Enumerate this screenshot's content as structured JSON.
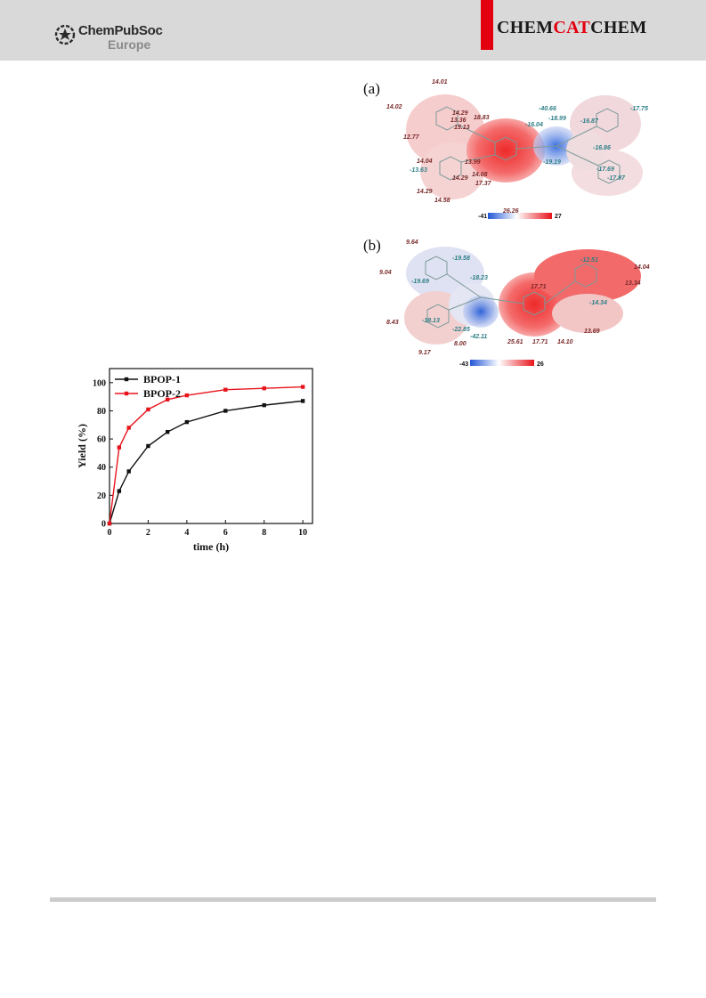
{
  "header": {
    "publisher_name": "ChemPubSoc",
    "publisher_sub": "Europe",
    "journal_part1": "CHEM",
    "journal_part2": "CAT",
    "journal_part3": "CHEM",
    "accent_color": "#e3000f",
    "header_bg": "#d9d9d9"
  },
  "figure_a": {
    "panel_label": "(a)",
    "scale_min": "-41",
    "scale_max": "27",
    "positive_labels": [
      "14.01",
      "14.02",
      "12.77",
      "14.04",
      "14.29",
      "14.58",
      "14.29",
      "14.29",
      "13.36",
      "15.13",
      "18.83",
      "13.99",
      "14.08",
      "17.37",
      "26.26"
    ],
    "negative_labels": [
      "-13.63",
      "-16.04",
      "-40.66",
      "-18.99",
      "-19.19",
      "-16.87",
      "-16.86",
      "-17.75",
      "-17.69",
      "-17.97"
    ]
  },
  "figure_b": {
    "panel_label": "(b)",
    "scale_min": "-43",
    "scale_max": "26",
    "positive_labels": [
      "9.64",
      "9.04",
      "8.43",
      "9.17",
      "8.00",
      "25.61",
      "17.71",
      "17.71",
      "13.69",
      "14.10",
      "14.04",
      "13.34"
    ],
    "negative_labels": [
      "-19.58",
      "-19.69",
      "-18.13",
      "-22.85",
      "-42.11",
      "-18.23",
      "-12.51",
      "-14.34"
    ]
  },
  "chart_data": {
    "type": "line",
    "xlabel": "time (h)",
    "ylabel": "Yield (%)",
    "xlim": [
      0,
      10.5
    ],
    "ylim": [
      0,
      110
    ],
    "xticks": [
      0,
      2,
      4,
      6,
      8,
      10
    ],
    "yticks": [
      0,
      20,
      40,
      60,
      80,
      100
    ],
    "legend_position": "top-left",
    "series": [
      {
        "name": "BPOP-1",
        "color": "#111111",
        "x": [
          0,
          0.5,
          1,
          2,
          3,
          4,
          6,
          8,
          10
        ],
        "y": [
          0,
          23,
          37,
          55,
          65,
          72,
          80,
          84,
          87
        ]
      },
      {
        "name": "BPOP-2",
        "color": "#e8141c",
        "x": [
          0,
          0.5,
          1,
          2,
          3,
          4,
          6,
          8,
          10
        ],
        "y": [
          0,
          54,
          68,
          81,
          88,
          91,
          95,
          96,
          97
        ]
      }
    ]
  }
}
